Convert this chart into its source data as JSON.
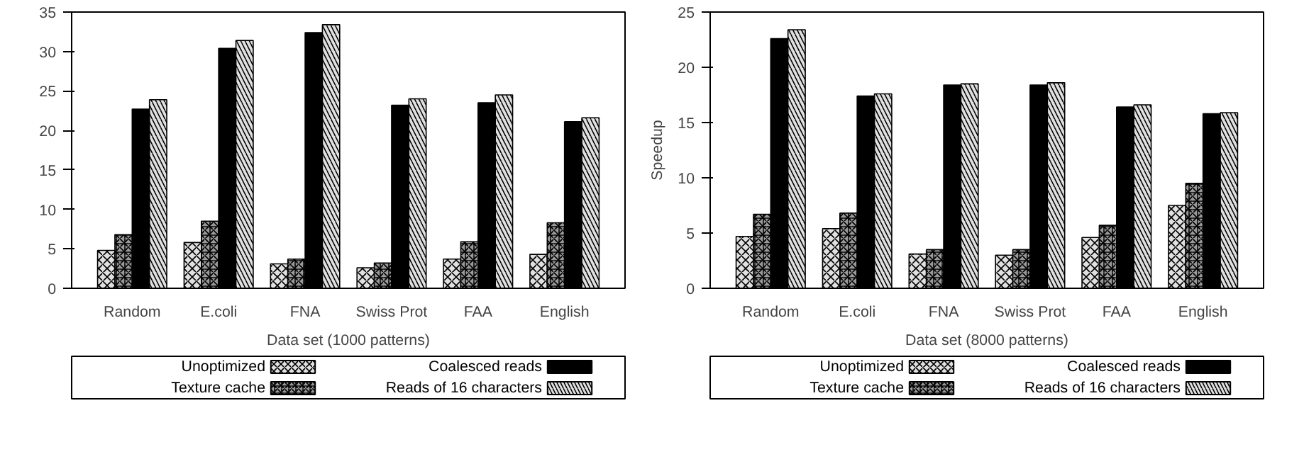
{
  "chart_data": [
    {
      "type": "bar",
      "xlabel": "Data set (1000 patterns)",
      "categories": [
        "Random",
        "E.coli",
        "FNA",
        "Swiss Prot",
        "FAA",
        "English"
      ],
      "ylim": [
        0,
        35
      ],
      "yticks": [
        0,
        5,
        10,
        15,
        20,
        25,
        30,
        35
      ],
      "grid": false,
      "legend": "bottom",
      "series": [
        {
          "name": "Unoptimized",
          "color": "#e0e0e0",
          "values": [
            4.8,
            5.8,
            3.1,
            2.6,
            3.7,
            4.3
          ]
        },
        {
          "name": "Texture cache",
          "color": "#999999",
          "values": [
            6.8,
            8.5,
            3.7,
            3.2,
            5.9,
            8.3
          ]
        },
        {
          "name": "Coalesced reads",
          "color": "#000000",
          "values": [
            22.7,
            30.4,
            32.4,
            23.2,
            23.5,
            21.1
          ]
        },
        {
          "name": "Reads of 16 characters",
          "color": "#e0e0e0",
          "values": [
            23.9,
            31.4,
            33.4,
            24.0,
            24.5,
            21.6
          ]
        }
      ]
    },
    {
      "type": "bar",
      "xlabel": "Data set (8000 patterns)",
      "ylabel": "Speedup",
      "categories": [
        "Random",
        "E.coli",
        "FNA",
        "Swiss Prot",
        "FAA",
        "English"
      ],
      "ylim": [
        0,
        25
      ],
      "yticks": [
        0,
        5,
        10,
        15,
        20,
        25
      ],
      "grid": false,
      "legend": "bottom",
      "series": [
        {
          "name": "Unoptimized",
          "color": "#e0e0e0",
          "values": [
            4.7,
            5.4,
            3.1,
            3.0,
            4.6,
            7.5
          ]
        },
        {
          "name": "Texture cache",
          "color": "#999999",
          "values": [
            6.7,
            6.8,
            3.5,
            3.5,
            5.7,
            9.5
          ]
        },
        {
          "name": "Coalesced reads",
          "color": "#000000",
          "values": [
            22.6,
            17.4,
            18.4,
            18.4,
            16.4,
            15.8
          ]
        },
        {
          "name": "Reads of 16 characters",
          "color": "#e0e0e0",
          "values": [
            23.4,
            17.6,
            18.5,
            18.6,
            16.6,
            15.9
          ]
        }
      ]
    }
  ]
}
